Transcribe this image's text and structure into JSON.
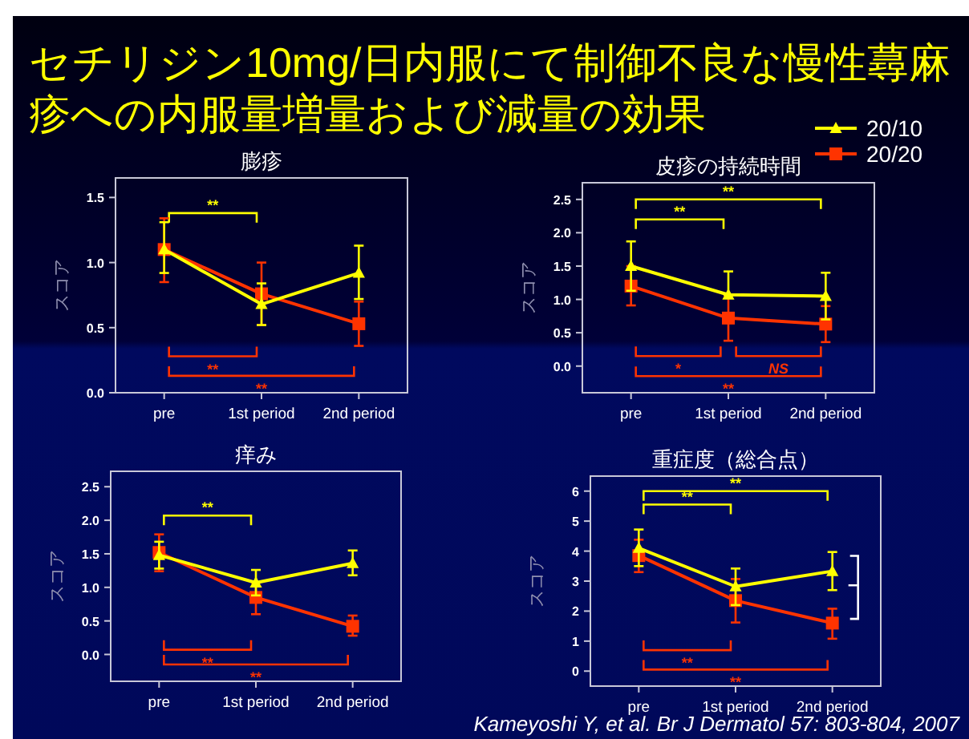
{
  "chart_data": [
    {
      "type": "other",
      "title": "セチリジン10mg/日内服にて制御不良な慢性蕁麻疹への内服量増量および減量の効果",
      "annotations": [
        "Kameyoshi Y, et al. Br J Dermatol 57: 803-804, 2007"
      ]
    },
    {
      "type": "line",
      "title": "膨疹",
      "ylabel": "スコア",
      "categories": [
        "pre",
        "1st period",
        "2nd period"
      ],
      "ylim": [
        0,
        1.65
      ],
      "yticks": [
        {
          "value": 0,
          "label": "0.0"
        },
        {
          "value": 0.5,
          "label": "0.5"
        },
        {
          "value": 1,
          "label": "1.0"
        },
        {
          "value": 1.5,
          "label": "1.5"
        }
      ],
      "series": [
        {
          "color": "#ffff00",
          "marker": "triangle",
          "values": [
            1.1,
            0.68,
            0.92
          ],
          "errors": [
            [
              0.92,
              1.31
            ],
            [
              0.52,
              0.84
            ],
            [
              0.72,
              1.13
            ]
          ]
        },
        {
          "color": "#ff3300",
          "marker": "square",
          "values": [
            1.1,
            0.76,
            0.53
          ],
          "errors": [
            [
              0.85,
              1.34
            ],
            [
              0.52,
              1.0
            ],
            [
              0.36,
              0.7
            ]
          ]
        }
      ],
      "annotations": [
        "**",
        "**",
        "**"
      ]
    },
    {
      "type": "line",
      "title": "皮疹の持続時間",
      "ylabel": "スコア",
      "categories": [
        "pre",
        "1st period",
        "2nd period"
      ],
      "ylim": [
        -0.4,
        2.75
      ],
      "yticks": [
        {
          "value": 0,
          "label": "0.0"
        },
        {
          "value": 0.5,
          "label": "0.5"
        },
        {
          "value": 1,
          "label": "1.0"
        },
        {
          "value": 1.5,
          "label": "1.5"
        },
        {
          "value": 2,
          "label": "2.0"
        },
        {
          "value": 2.5,
          "label": "2.5"
        }
      ],
      "legend": "top right",
      "series": [
        {
          "name": "20/10",
          "color": "#ffff00",
          "marker": "triangle",
          "values": [
            1.5,
            1.07,
            1.05
          ],
          "errors": [
            [
              1.13,
              1.87
            ],
            [
              1.07,
              1.42
            ],
            [
              0.7,
              1.4
            ]
          ]
        },
        {
          "name": "20/20",
          "color": "#ff3300",
          "marker": "square",
          "values": [
            1.2,
            0.72,
            0.63
          ],
          "errors": [
            [
              0.91,
              1.5
            ],
            [
              0.38,
              1.06
            ],
            [
              0.36,
              0.9
            ]
          ]
        }
      ],
      "annotations": [
        "**",
        "**",
        "*",
        "NS",
        "**"
      ]
    },
    {
      "type": "line",
      "title": "痒み",
      "ylabel": "スコア",
      "categories": [
        "pre",
        "1st period",
        "2nd period"
      ],
      "ylim": [
        -0.4,
        2.73
      ],
      "yticks": [
        {
          "value": 0,
          "label": "0.0"
        },
        {
          "value": 0.5,
          "label": "0.5"
        },
        {
          "value": 1,
          "label": "1.0"
        },
        {
          "value": 1.5,
          "label": "1.5"
        },
        {
          "value": 2,
          "label": "2.0"
        },
        {
          "value": 2.5,
          "label": "2.5"
        }
      ],
      "series": [
        {
          "color": "#ffff00",
          "marker": "triangle",
          "values": [
            1.48,
            1.07,
            1.36
          ],
          "errors": [
            [
              1.28,
              1.68
            ],
            [
              0.88,
              1.26
            ],
            [
              1.18,
              1.55
            ]
          ]
        },
        {
          "color": "#ff3300",
          "marker": "square",
          "values": [
            1.52,
            0.85,
            0.42
          ],
          "errors": [
            [
              1.24,
              1.79
            ],
            [
              0.6,
              1.07
            ],
            [
              0.28,
              0.58
            ]
          ]
        }
      ],
      "annotations": [
        "**",
        "**",
        "**"
      ]
    },
    {
      "type": "line",
      "title": "重症度（総合点）",
      "ylabel": "スコア",
      "categories": [
        "pre",
        "1st period",
        "2nd period"
      ],
      "ylim": [
        -0.5,
        6.5
      ],
      "yticks": [
        0,
        1,
        2,
        3,
        4,
        5,
        6
      ],
      "series": [
        {
          "color": "#ffff00",
          "marker": "triangle",
          "values": [
            4.1,
            2.82,
            3.33
          ],
          "errors": [
            [
              3.5,
              4.72
            ],
            [
              2.2,
              3.42
            ],
            [
              2.7,
              3.97
            ]
          ]
        },
        {
          "color": "#ff3300",
          "marker": "square",
          "values": [
            3.85,
            2.35,
            1.6
          ],
          "errors": [
            [
              3.3,
              4.38
            ],
            [
              1.62,
              3.07
            ],
            [
              1.08,
              2.08
            ]
          ]
        }
      ],
      "annotations": [
        "**",
        "**",
        "**",
        "**"
      ]
    }
  ]
}
